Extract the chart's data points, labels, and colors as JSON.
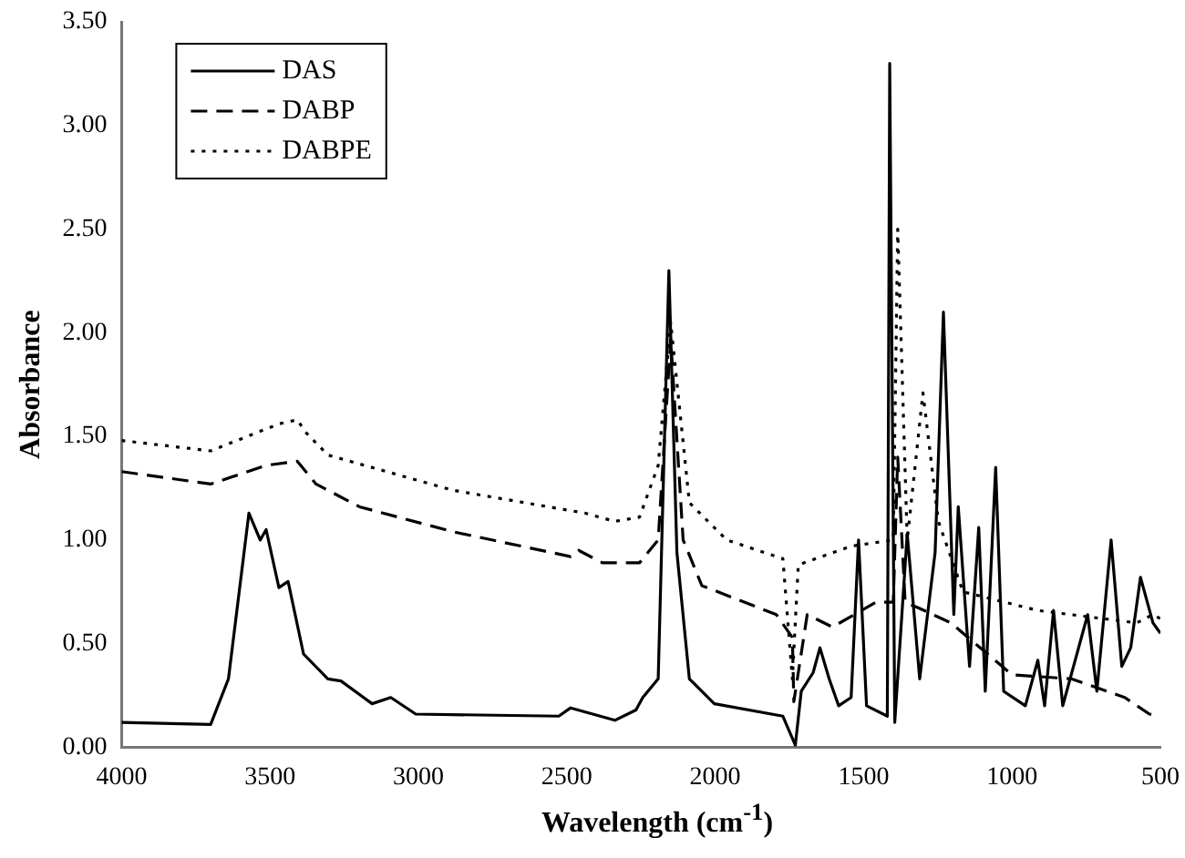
{
  "chart_data": {
    "type": "line",
    "xlabel": "Wavelength (cm$^{-1}$)",
    "ylabel": "Absorbance",
    "xlim": [
      4000,
      500
    ],
    "xticks": [
      4000,
      3500,
      3000,
      2500,
      2000,
      1500,
      1000,
      500
    ],
    "ylim": [
      0,
      3.5
    ],
    "yticks": [
      {
        "value": 0,
        "label": "0.00"
      },
      {
        "value": 0.5,
        "label": "0.50"
      },
      {
        "value": 1,
        "label": "1.00"
      },
      {
        "value": 1.5,
        "label": "1.50"
      },
      {
        "value": 2,
        "label": "2.00"
      },
      {
        "value": 2.5,
        "label": "2.50"
      },
      {
        "value": 3,
        "label": "3.00"
      },
      {
        "value": 3.5,
        "label": "3.50"
      }
    ],
    "grid": false,
    "legend": "top left",
    "marker": "none",
    "series": [
      {
        "name": "DAS",
        "color": "#000000",
        "line_style": "solid",
        "x": [
          4000,
          3700,
          3640,
          3571,
          3533,
          3513,
          3470,
          3439,
          3387,
          3305,
          3261,
          3156,
          3093,
          3009,
          2527,
          2487,
          2338,
          2267,
          2244,
          2192,
          2156,
          2129,
          2087,
          2003,
          1772,
          1730,
          1710,
          1670,
          1647,
          1616,
          1584,
          1542,
          1517,
          1490,
          1420,
          1412,
          1395,
          1353,
          1311,
          1259,
          1231,
          1196,
          1181,
          1143,
          1112,
          1090,
          1055,
          1028,
          955,
          913,
          890,
          860,
          829,
          745,
          714,
          666,
          630,
          600,
          567,
          525,
          500
        ],
        "values": [
          0.12,
          0.11,
          0.33,
          1.13,
          1.0,
          1.05,
          0.77,
          0.8,
          0.45,
          0.33,
          0.32,
          0.21,
          0.24,
          0.16,
          0.15,
          0.19,
          0.13,
          0.18,
          0.24,
          0.33,
          2.3,
          0.94,
          0.33,
          0.21,
          0.15,
          0.01,
          0.27,
          0.36,
          0.48,
          0.33,
          0.2,
          0.24,
          1.0,
          0.2,
          0.15,
          3.3,
          0.12,
          1.03,
          0.33,
          0.94,
          2.1,
          0.64,
          1.16,
          0.39,
          1.06,
          0.27,
          1.35,
          0.27,
          0.2,
          0.42,
          0.2,
          0.66,
          0.2,
          0.64,
          0.27,
          1.0,
          0.39,
          0.48,
          0.82,
          0.6,
          0.55
        ]
      },
      {
        "name": "DABP",
        "color": "#000000",
        "line_style": "dashed",
        "x": [
          4000,
          3700,
          3513,
          3408,
          3345,
          3198,
          2884,
          2487,
          2460,
          2380,
          2255,
          2192,
          2150,
          2108,
          2045,
          1794,
          1740,
          1735,
          1690,
          1605,
          1458,
          1400,
          1385,
          1360,
          1311,
          1206,
          1000,
          800,
          620,
          537,
          500
        ],
        "values": [
          1.33,
          1.27,
          1.36,
          1.38,
          1.27,
          1.16,
          1.04,
          0.92,
          0.95,
          0.89,
          0.89,
          1.0,
          1.97,
          1.0,
          0.78,
          0.64,
          0.53,
          0.22,
          0.64,
          0.58,
          0.7,
          0.7,
          1.4,
          0.7,
          0.67,
          0.6,
          0.35,
          0.33,
          0.24,
          0.16,
          0.15
        ]
      },
      {
        "name": "DABPE",
        "color": "#000000",
        "line_style": "dotted",
        "x": [
          4000,
          3700,
          3470,
          3408,
          3380,
          3305,
          2884,
          2440,
          2338,
          2255,
          2192,
          2150,
          2087,
          1961,
          1772,
          1740,
          1720,
          1542,
          1400,
          1385,
          1353,
          1300,
          1248,
          1165,
          913,
          580,
          525,
          500
        ],
        "values": [
          1.48,
          1.43,
          1.56,
          1.58,
          1.52,
          1.41,
          1.24,
          1.13,
          1.09,
          1.11,
          1.36,
          2.05,
          1.18,
          1.0,
          0.91,
          0.33,
          0.88,
          0.97,
          1.0,
          2.5,
          1.0,
          1.71,
          1.09,
          0.75,
          0.66,
          0.6,
          0.64,
          0.62
        ]
      }
    ]
  }
}
